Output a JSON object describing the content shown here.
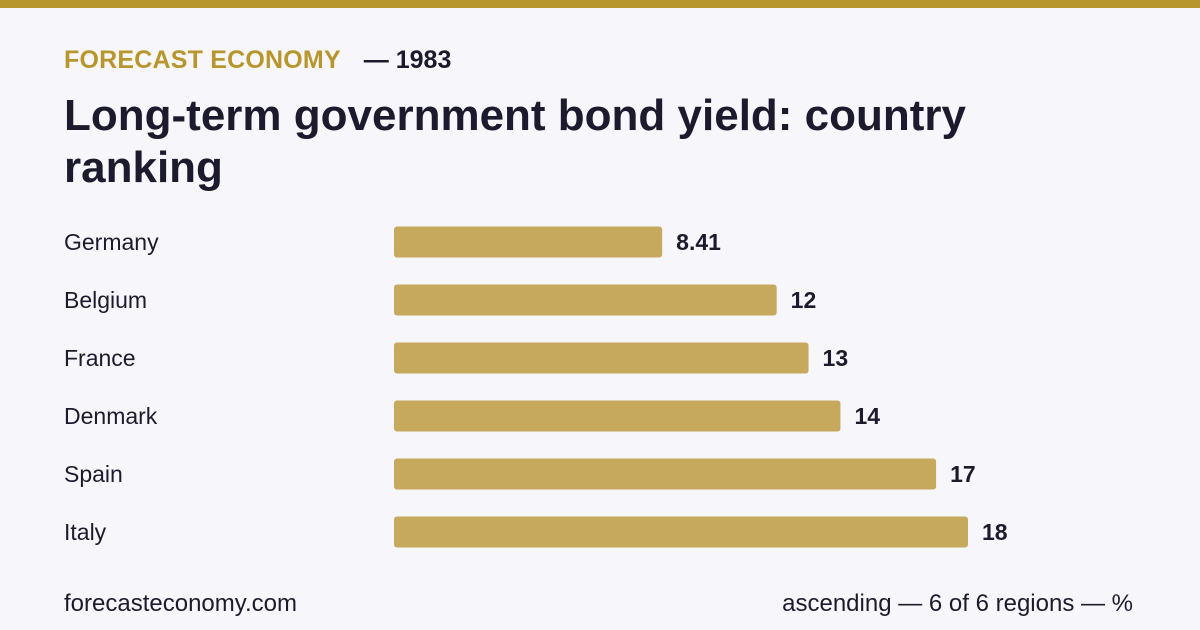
{
  "header": {
    "brand": "FORECAST ECONOMY",
    "year_label": "— 1983"
  },
  "title": "Long-term government bond yield: country ranking",
  "footer": {
    "site": "forecasteconomy.com",
    "note": "ascending — 6 of 6 regions — %"
  },
  "colors": {
    "accent": "#b8962e",
    "bar": "#c6a95c",
    "text": "#1c1b2e",
    "background": "#f7f7fb"
  },
  "chart_data": {
    "type": "bar",
    "orientation": "horizontal",
    "sort": "ascending",
    "categories": [
      "Germany",
      "Belgium",
      "France",
      "Denmark",
      "Spain",
      "Italy"
    ],
    "values": [
      8.41,
      12,
      13,
      14,
      17,
      18
    ],
    "value_labels": [
      "8.41",
      "12",
      "13",
      "14",
      "17",
      "18"
    ],
    "grid": false,
    "legend": "none"
  }
}
